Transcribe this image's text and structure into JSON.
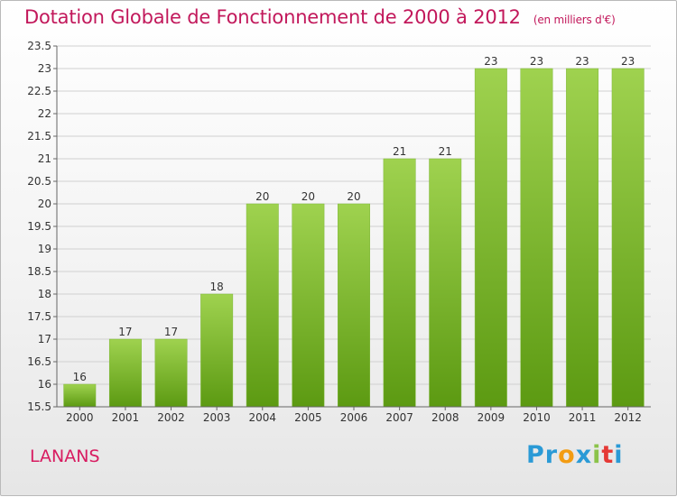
{
  "title": "Dotation Globale de Fonctionnement de 2000 à 2012",
  "unit": "(en milliers d'€)",
  "commune": "LANANS",
  "brand": {
    "letters": [
      "P",
      "r",
      "o",
      "x",
      "i",
      "t",
      "i"
    ],
    "colors": [
      "#2a9ad6",
      "#2a9ad6",
      "#f39c12",
      "#2a9ad6",
      "#8bc34a",
      "#e53935",
      "#2a9ad6"
    ]
  },
  "colors": {
    "bar_top": "#9fd24f",
    "bar_bottom": "#5c9a12",
    "title": "#c2185b",
    "grid": "#d0d0d0"
  },
  "chart_data": {
    "type": "bar",
    "categories": [
      "2000",
      "2001",
      "2002",
      "2003",
      "2004",
      "2005",
      "2006",
      "2007",
      "2008",
      "2009",
      "2010",
      "2011",
      "2012"
    ],
    "values": [
      16,
      17,
      17,
      18,
      20,
      20,
      20,
      21,
      21,
      23,
      23,
      23,
      23
    ],
    "ylim": [
      15.5,
      23.5
    ],
    "yticks": [
      15.5,
      16,
      16.5,
      17,
      17.5,
      18,
      18.5,
      19,
      19.5,
      20,
      20.5,
      21,
      21.5,
      22,
      22.5,
      23,
      23.5
    ],
    "title": "Dotation Globale de Fonctionnement de 2000 à 2012",
    "xlabel": "",
    "ylabel": "",
    "grid": true
  }
}
